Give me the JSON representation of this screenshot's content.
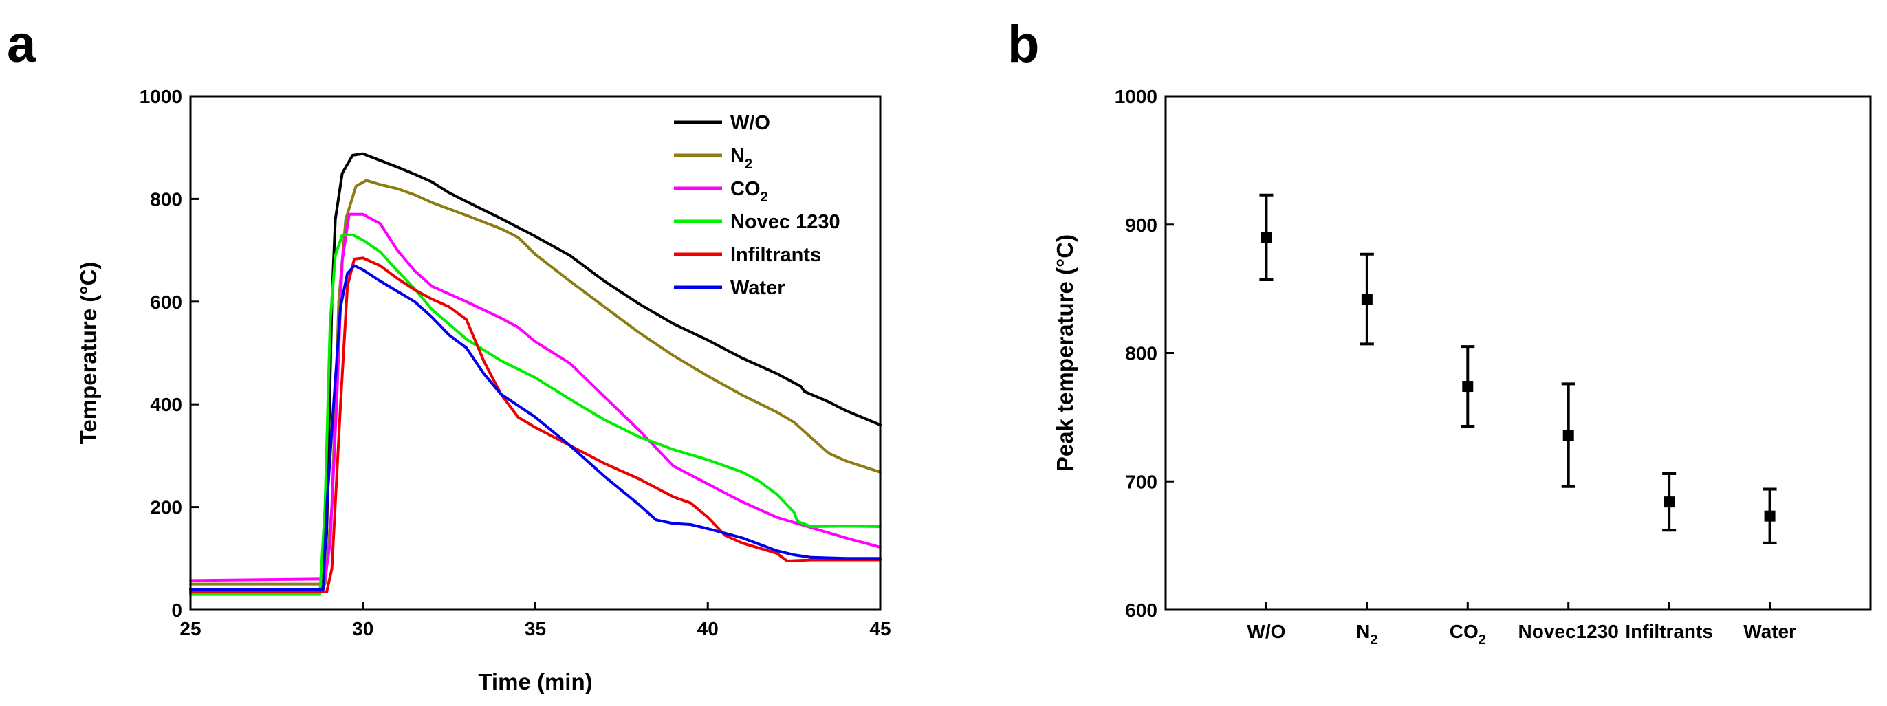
{
  "panels": {
    "a_label": "a",
    "b_label": "b"
  },
  "chart_data": [
    {
      "type": "line",
      "panel": "a",
      "title": "",
      "xlabel": "Time (min)",
      "ylabel": "Temperature (°C)",
      "xlim": [
        25,
        45
      ],
      "ylim": [
        0,
        1000
      ],
      "xticks": [
        25,
        30,
        35,
        40,
        45
      ],
      "yticks": [
        0,
        200,
        400,
        600,
        800,
        1000
      ],
      "legend_position": "top-right",
      "series": [
        {
          "name": "W/O",
          "label_main": "W/O",
          "label_sub": "",
          "color": "#000000",
          "points": [
            [
              25,
              40
            ],
            [
              28.8,
              40
            ],
            [
              28.95,
              150
            ],
            [
              29.1,
              600
            ],
            [
              29.2,
              760
            ],
            [
              29.4,
              850
            ],
            [
              29.7,
              885
            ],
            [
              30,
              888
            ],
            [
              30.5,
              875
            ],
            [
              31,
              862
            ],
            [
              31.5,
              848
            ],
            [
              32,
              833
            ],
            [
              32.5,
              812
            ],
            [
              33,
              795
            ],
            [
              34,
              762
            ],
            [
              35,
              727
            ],
            [
              36,
              690
            ],
            [
              37,
              640
            ],
            [
              38,
              596
            ],
            [
              39,
              557
            ],
            [
              40,
              525
            ],
            [
              41,
              490
            ],
            [
              42,
              460
            ],
            [
              42.7,
              435
            ],
            [
              42.8,
              425
            ],
            [
              43.5,
              405
            ],
            [
              44,
              388
            ],
            [
              45,
              360
            ]
          ]
        },
        {
          "name": "N2",
          "label_main": "N",
          "label_sub": "2",
          "color": "#8b7d14",
          "points": [
            [
              25,
              50
            ],
            [
              28.9,
              50
            ],
            [
              29.1,
              200
            ],
            [
              29.3,
              600
            ],
            [
              29.5,
              760
            ],
            [
              29.8,
              825
            ],
            [
              30.1,
              836
            ],
            [
              30.5,
              828
            ],
            [
              31,
              820
            ],
            [
              31.5,
              808
            ],
            [
              32,
              793
            ],
            [
              33,
              768
            ],
            [
              34,
              742
            ],
            [
              34.5,
              725
            ],
            [
              35,
              692
            ],
            [
              36,
              640
            ],
            [
              37,
              590
            ],
            [
              38,
              540
            ],
            [
              39,
              495
            ],
            [
              40,
              455
            ],
            [
              41,
              418
            ],
            [
              42,
              385
            ],
            [
              42.5,
              365
            ],
            [
              43,
              335
            ],
            [
              43.5,
              305
            ],
            [
              44,
              290
            ],
            [
              45,
              268
            ]
          ]
        },
        {
          "name": "CO2",
          "label_main": "CO",
          "label_sub": "2",
          "color": "#ff00ff",
          "points": [
            [
              25,
              57
            ],
            [
              28.9,
              60
            ],
            [
              29.05,
              130
            ],
            [
              29.25,
              420
            ],
            [
              29.4,
              680
            ],
            [
              29.6,
              770
            ],
            [
              30,
              770
            ],
            [
              30.5,
              752
            ],
            [
              31,
              700
            ],
            [
              31.5,
              660
            ],
            [
              32,
              630
            ],
            [
              33,
              600
            ],
            [
              34,
              568
            ],
            [
              34.5,
              550
            ],
            [
              35,
              522
            ],
            [
              36,
              480
            ],
            [
              37,
              415
            ],
            [
              38,
              350
            ],
            [
              39,
              280
            ],
            [
              40,
              245
            ],
            [
              41,
              210
            ],
            [
              42,
              180
            ],
            [
              43,
              160
            ],
            [
              44,
              140
            ],
            [
              45,
              122
            ]
          ]
        },
        {
          "name": "Novec 1230",
          "label_main": "Novec 1230",
          "label_sub": "",
          "color": "#00ee00",
          "points": [
            [
              25,
              30
            ],
            [
              28.75,
              30
            ],
            [
              28.9,
              200
            ],
            [
              29.05,
              560
            ],
            [
              29.2,
              690
            ],
            [
              29.4,
              730
            ],
            [
              29.7,
              730
            ],
            [
              30,
              720
            ],
            [
              30.5,
              697
            ],
            [
              31,
              660
            ],
            [
              31.5,
              625
            ],
            [
              32,
              585
            ],
            [
              33,
              527
            ],
            [
              34,
              485
            ],
            [
              35,
              452
            ],
            [
              36,
              410
            ],
            [
              37,
              370
            ],
            [
              38,
              337
            ],
            [
              39,
              312
            ],
            [
              40,
              292
            ],
            [
              41,
              268
            ],
            [
              41.5,
              250
            ],
            [
              42,
              225
            ],
            [
              42.5,
              190
            ],
            [
              42.6,
              172
            ],
            [
              43,
              162
            ],
            [
              44,
              163
            ],
            [
              45,
              162
            ]
          ]
        },
        {
          "name": "Infiltrants",
          "label_main": "Infiltrants",
          "label_sub": "",
          "color": "#ee0000",
          "points": [
            [
              25,
              35
            ],
            [
              28.95,
              35
            ],
            [
              29.1,
              80
            ],
            [
              29.35,
              400
            ],
            [
              29.55,
              630
            ],
            [
              29.75,
              683
            ],
            [
              30,
              685
            ],
            [
              30.5,
              670
            ],
            [
              31,
              645
            ],
            [
              31.5,
              623
            ],
            [
              32,
              605
            ],
            [
              32.5,
              590
            ],
            [
              33,
              565
            ],
            [
              33.5,
              485
            ],
            [
              34,
              420
            ],
            [
              34.5,
              375
            ],
            [
              35,
              355
            ],
            [
              36,
              320
            ],
            [
              37,
              285
            ],
            [
              38,
              255
            ],
            [
              39,
              220
            ],
            [
              39.5,
              208
            ],
            [
              40,
              180
            ],
            [
              40.5,
              145
            ],
            [
              41,
              130
            ],
            [
              42,
              110
            ],
            [
              42.3,
              95
            ],
            [
              43,
              97
            ],
            [
              44,
              97
            ],
            [
              45,
              97
            ]
          ]
        },
        {
          "name": "Water",
          "label_main": "Water",
          "label_sub": "",
          "color": "#0000ee",
          "points": [
            [
              25,
              40
            ],
            [
              28.85,
              40
            ],
            [
              28.95,
              200
            ],
            [
              29.15,
              400
            ],
            [
              29.35,
              590
            ],
            [
              29.55,
              655
            ],
            [
              29.75,
              670
            ],
            [
              30,
              662
            ],
            [
              30.5,
              640
            ],
            [
              31,
              620
            ],
            [
              31.5,
              600
            ],
            [
              32,
              570
            ],
            [
              32.5,
              535
            ],
            [
              33,
              510
            ],
            [
              33.5,
              460
            ],
            [
              34,
              420
            ],
            [
              35,
              375
            ],
            [
              36,
              320
            ],
            [
              36.5,
              290
            ],
            [
              37,
              260
            ],
            [
              38,
              205
            ],
            [
              38.5,
              175
            ],
            [
              39,
              168
            ],
            [
              39.5,
              166
            ],
            [
              40,
              158
            ],
            [
              41,
              140
            ],
            [
              42,
              115
            ],
            [
              42.5,
              107
            ],
            [
              43,
              102
            ],
            [
              44,
              100
            ],
            [
              45,
              100
            ]
          ]
        }
      ]
    },
    {
      "type": "scatter",
      "panel": "b",
      "title": "",
      "xlabel": "",
      "ylabel": "Peak temperature (°C)",
      "ylim": [
        600,
        1000
      ],
      "yticks": [
        600,
        700,
        800,
        900,
        1000
      ],
      "categories": [
        "W/O",
        "N2",
        "CO2",
        "Novec1230",
        "Infiltrants",
        "Water"
      ],
      "category_labels": [
        {
          "main": "W/O",
          "sub": ""
        },
        {
          "main": "N",
          "sub": "2"
        },
        {
          "main": "CO",
          "sub": "2"
        },
        {
          "main": "Novec1230",
          "sub": ""
        },
        {
          "main": "Infiltrants",
          "sub": ""
        },
        {
          "main": "Water",
          "sub": ""
        }
      ],
      "values": [
        890,
        842,
        774,
        736,
        684,
        673
      ],
      "errors": [
        33,
        35,
        31,
        40,
        22,
        21
      ]
    }
  ]
}
